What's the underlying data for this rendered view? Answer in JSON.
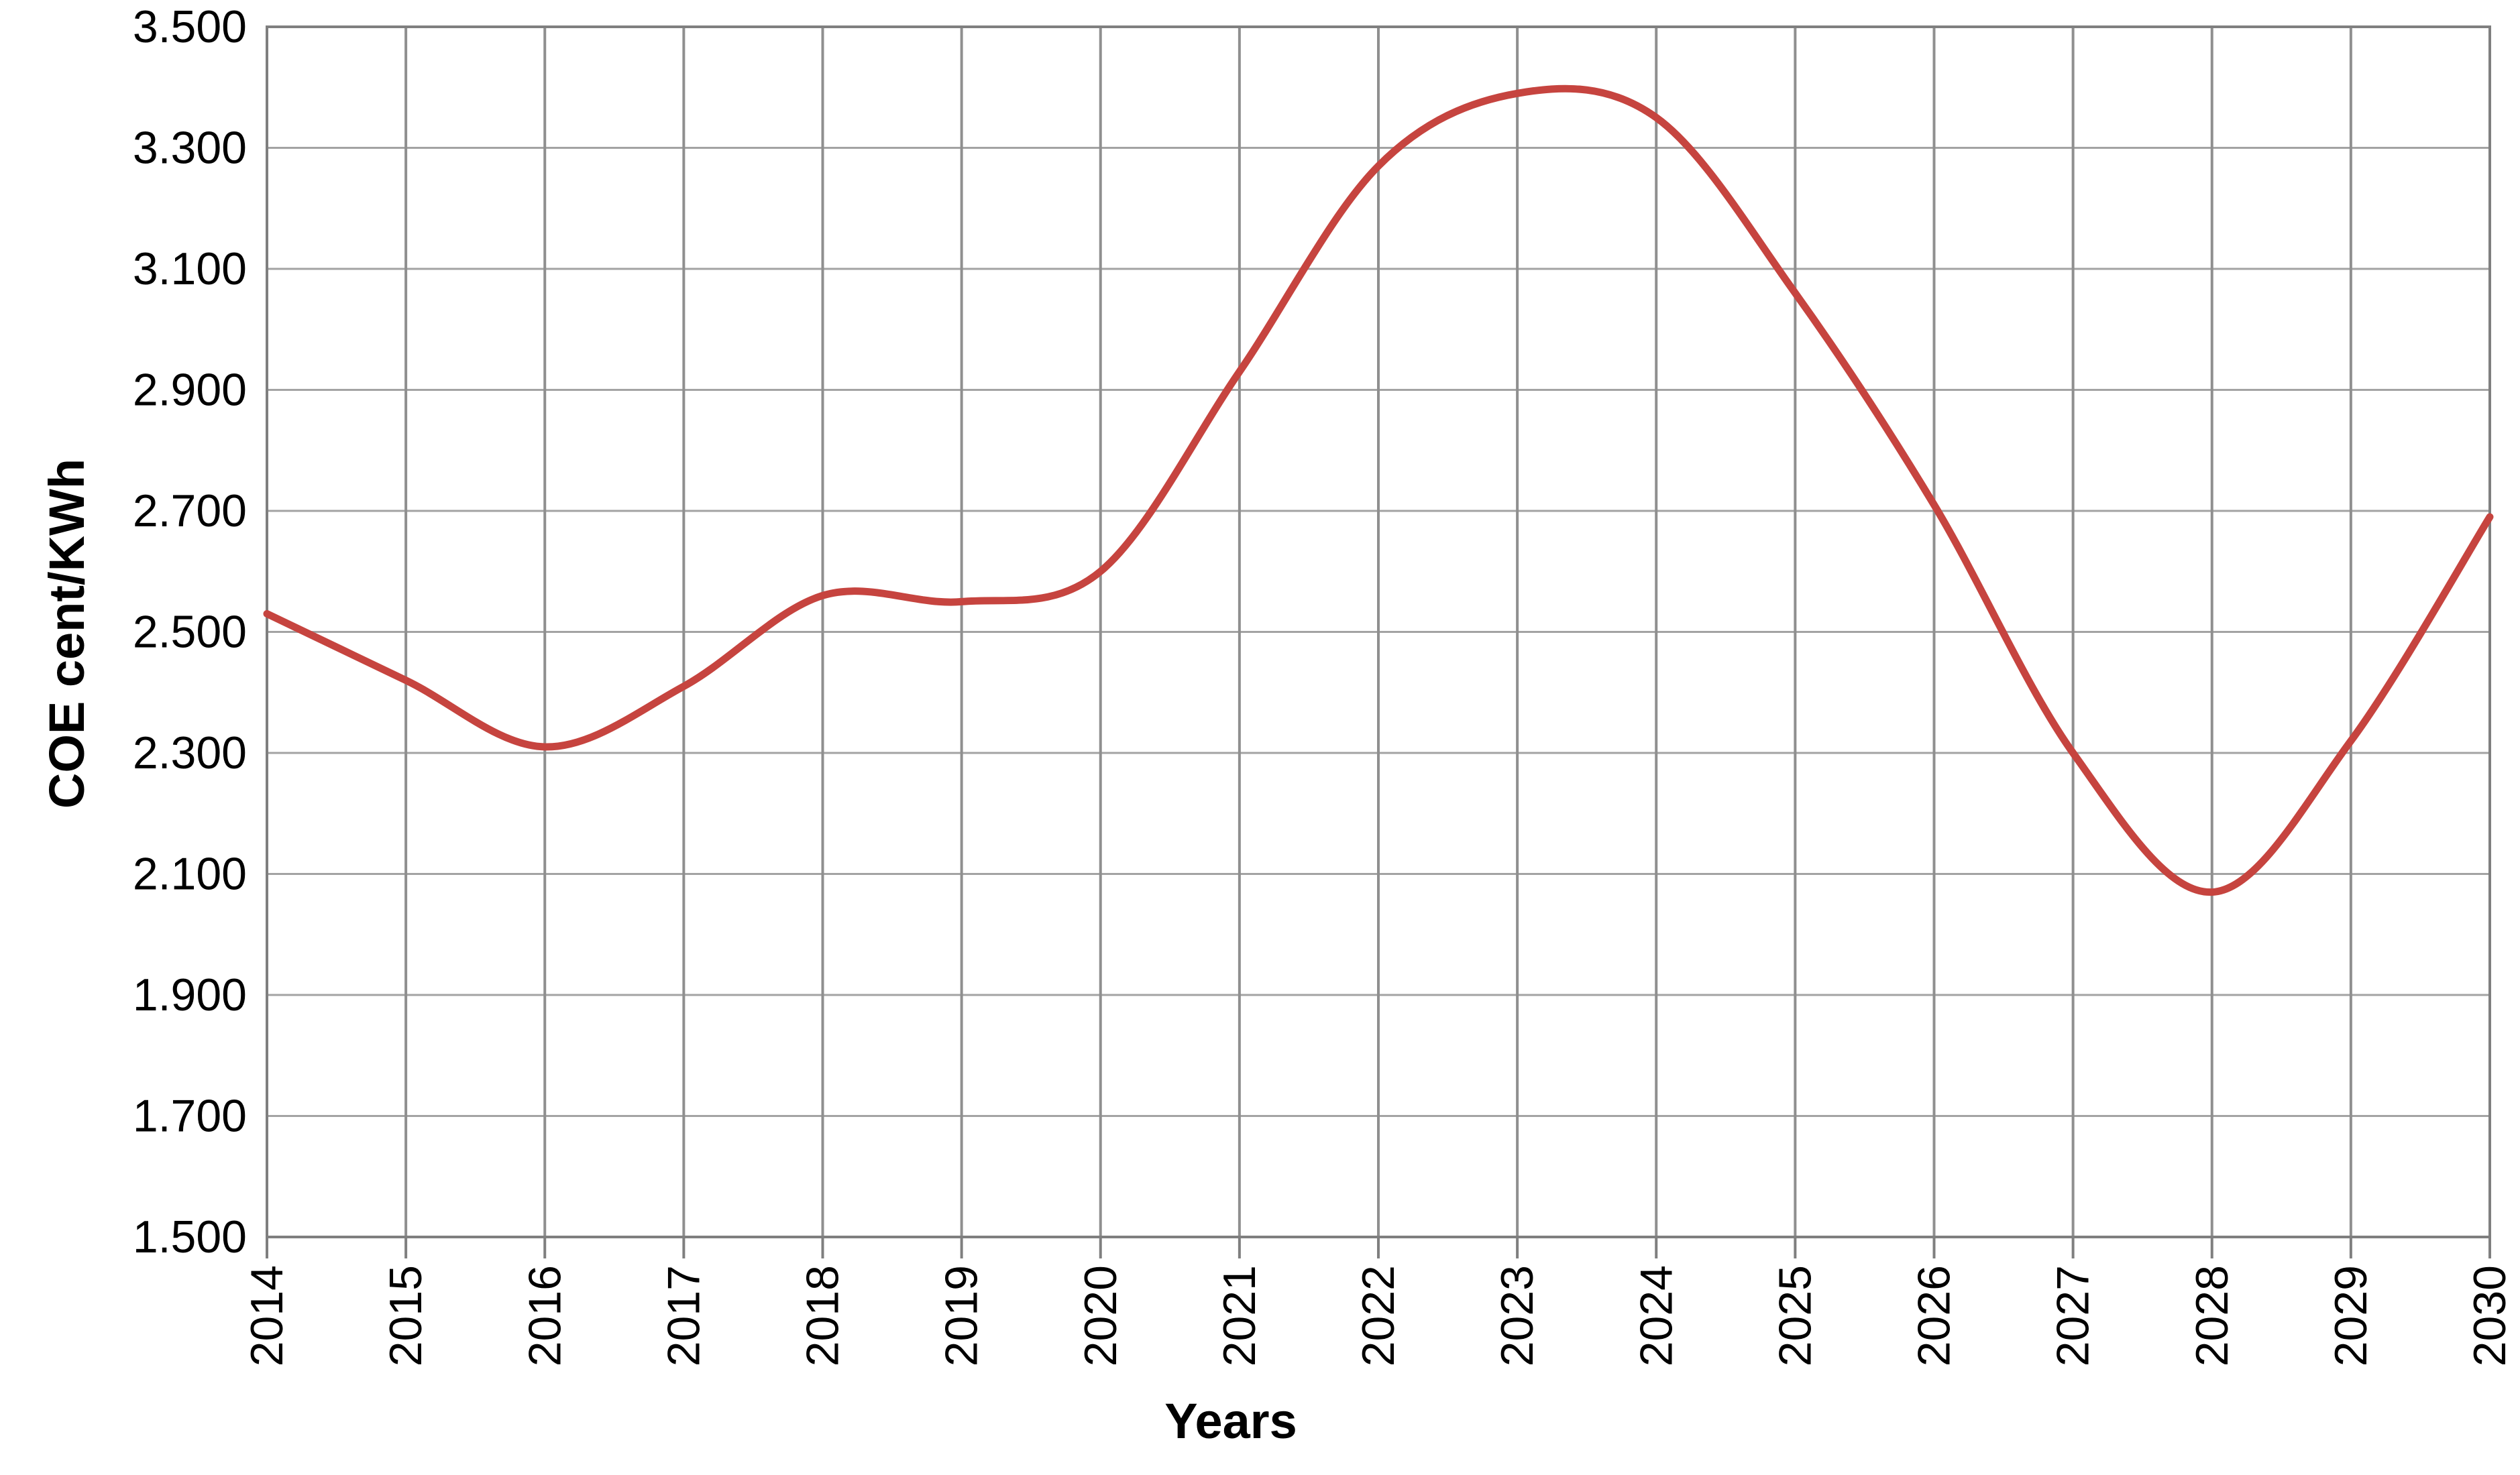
{
  "chart_data": {
    "type": "line",
    "title": "",
    "xlabel": "Years",
    "ylabel": "COE cent/KWh",
    "x": [
      2014,
      2015,
      2016,
      2017,
      2018,
      2019,
      2020,
      2021,
      2022,
      2023,
      2024,
      2025,
      2026,
      2027,
      2028,
      2029,
      2030
    ],
    "x_tick_labels": [
      "2014",
      "2015",
      "2016",
      "2017",
      "2018",
      "2019",
      "2020",
      "2021",
      "2022",
      "2023",
      "2024",
      "2025",
      "2026",
      "2027",
      "2028",
      "2029",
      "2030"
    ],
    "values": [
      2.53,
      2.42,
      2.31,
      2.41,
      2.56,
      2.55,
      2.6,
      2.93,
      3.27,
      3.39,
      3.35,
      3.06,
      2.71,
      2.3,
      2.07,
      2.32,
      2.69
    ],
    "ylim": [
      1.5,
      3.5
    ],
    "ytick_step": 0.2,
    "y_tick_labels": [
      "1.500",
      "1.700",
      "1.900",
      "2.100",
      "2.300",
      "2.500",
      "2.700",
      "2.900",
      "3.100",
      "3.300",
      "3.500"
    ],
    "grid": true,
    "legend": false,
    "smooth": true,
    "line_color": "#c6443f",
    "grid_color": "#a3a3a3",
    "vgrid_color": "#8f8f8f",
    "axis_color": "#7f7f7f",
    "text_color": "#000000"
  }
}
